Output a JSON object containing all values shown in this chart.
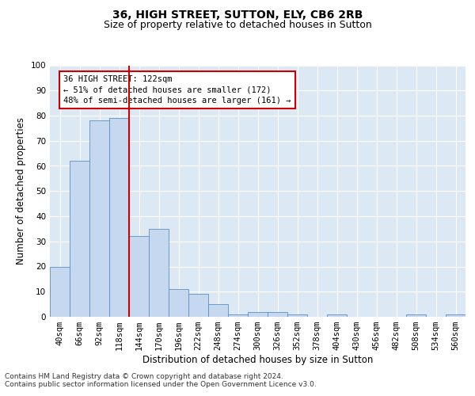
{
  "title1": "36, HIGH STREET, SUTTON, ELY, CB6 2RB",
  "title2": "Size of property relative to detached houses in Sutton",
  "xlabel": "Distribution of detached houses by size in Sutton",
  "ylabel": "Number of detached properties",
  "categories": [
    "40sqm",
    "66sqm",
    "92sqm",
    "118sqm",
    "144sqm",
    "170sqm",
    "196sqm",
    "222sqm",
    "248sqm",
    "274sqm",
    "300sqm",
    "326sqm",
    "352sqm",
    "378sqm",
    "404sqm",
    "430sqm",
    "456sqm",
    "482sqm",
    "508sqm",
    "534sqm",
    "560sqm"
  ],
  "values": [
    20,
    62,
    78,
    79,
    32,
    35,
    11,
    9,
    5,
    1,
    2,
    2,
    1,
    0,
    1,
    0,
    0,
    0,
    1,
    0,
    1
  ],
  "bar_color": "#c5d8f0",
  "bar_edge_color": "#5a8fc2",
  "property_line_index": 3,
  "property_line_color": "#cc0000",
  "annotation_text": "36 HIGH STREET: 122sqm\n← 51% of detached houses are smaller (172)\n48% of semi-detached houses are larger (161) →",
  "annotation_box_color": "#ffffff",
  "annotation_box_edge_color": "#cc0000",
  "ylim": [
    0,
    100
  ],
  "yticks": [
    0,
    10,
    20,
    30,
    40,
    50,
    60,
    70,
    80,
    90,
    100
  ],
  "footnote1": "Contains HM Land Registry data © Crown copyright and database right 2024.",
  "footnote2": "Contains public sector information licensed under the Open Government Licence v3.0.",
  "background_color": "#dde8f5",
  "fig_background": "#ffffff",
  "grid_color": "#ffffff",
  "title_fontsize": 10,
  "subtitle_fontsize": 9,
  "axis_label_fontsize": 8.5,
  "tick_fontsize": 7.5,
  "annotation_fontsize": 7.5,
  "footnote_fontsize": 6.5
}
